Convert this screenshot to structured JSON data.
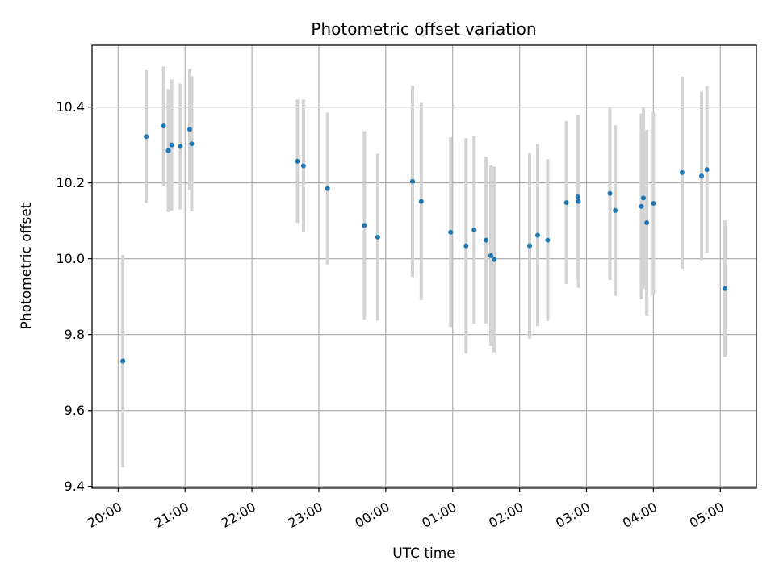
{
  "chart_data": {
    "type": "scatter",
    "title": "Photometric offset variation",
    "xlabel": "UTC time",
    "ylabel": "Photometric offset",
    "x_unit": "hours",
    "x_ticks": [
      {
        "value": 20,
        "label": "20:00"
      },
      {
        "value": 21,
        "label": "21:00"
      },
      {
        "value": 22,
        "label": "22:00"
      },
      {
        "value": 23,
        "label": "23:00"
      },
      {
        "value": 24,
        "label": "00:00"
      },
      {
        "value": 25,
        "label": "01:00"
      },
      {
        "value": 26,
        "label": "02:00"
      },
      {
        "value": 27,
        "label": "03:00"
      },
      {
        "value": 28,
        "label": "04:00"
      },
      {
        "value": 29,
        "label": "05:00"
      }
    ],
    "y_ticks": [
      {
        "value": 9.4,
        "label": "9.4"
      },
      {
        "value": 9.6,
        "label": "9.6"
      },
      {
        "value": 9.8,
        "label": "9.8"
      },
      {
        "value": 10.0,
        "label": "10.0"
      },
      {
        "value": 10.2,
        "label": "10.2"
      },
      {
        "value": 10.4,
        "label": "10.4"
      }
    ],
    "xlim": [
      19.61,
      29.54
    ],
    "ylim": [
      9.395,
      10.563
    ],
    "grid": true,
    "colors": {
      "marker": "#1f77b4",
      "errorbar": "#d3d3d3",
      "grid": "#b0b0b0"
    },
    "points": [
      {
        "x": 20.07,
        "y": 9.73,
        "err": 0.28
      },
      {
        "x": 20.42,
        "y": 10.322,
        "err": 0.175
      },
      {
        "x": 20.68,
        "y": 10.35,
        "err": 0.157
      },
      {
        "x": 20.75,
        "y": 10.285,
        "err": 0.162
      },
      {
        "x": 20.8,
        "y": 10.3,
        "err": 0.173
      },
      {
        "x": 20.93,
        "y": 10.296,
        "err": 0.166
      },
      {
        "x": 21.07,
        "y": 10.341,
        "err": 0.16
      },
      {
        "x": 21.1,
        "y": 10.303,
        "err": 0.178
      },
      {
        "x": 22.68,
        "y": 10.257,
        "err": 0.163
      },
      {
        "x": 22.77,
        "y": 10.245,
        "err": 0.175
      },
      {
        "x": 23.13,
        "y": 10.185,
        "err": 0.2
      },
      {
        "x": 23.68,
        "y": 10.088,
        "err": 0.248
      },
      {
        "x": 23.88,
        "y": 10.057,
        "err": 0.22
      },
      {
        "x": 24.4,
        "y": 10.204,
        "err": 0.252
      },
      {
        "x": 24.53,
        "y": 10.151,
        "err": 0.26
      },
      {
        "x": 24.97,
        "y": 10.07,
        "err": 0.25
      },
      {
        "x": 25.2,
        "y": 10.034,
        "err": 0.284
      },
      {
        "x": 25.32,
        "y": 10.076,
        "err": 0.247
      },
      {
        "x": 25.5,
        "y": 10.049,
        "err": 0.22
      },
      {
        "x": 25.57,
        "y": 10.008,
        "err": 0.238
      },
      {
        "x": 25.62,
        "y": 9.998,
        "err": 0.245
      },
      {
        "x": 26.15,
        "y": 10.034,
        "err": 0.245
      },
      {
        "x": 26.27,
        "y": 10.062,
        "err": 0.24
      },
      {
        "x": 26.42,
        "y": 10.049,
        "err": 0.213
      },
      {
        "x": 26.7,
        "y": 10.148,
        "err": 0.215
      },
      {
        "x": 26.87,
        "y": 10.163,
        "err": 0.215
      },
      {
        "x": 26.88,
        "y": 10.151,
        "err": 0.228
      },
      {
        "x": 27.35,
        "y": 10.172,
        "err": 0.228
      },
      {
        "x": 27.43,
        "y": 10.127,
        "err": 0.225
      },
      {
        "x": 27.82,
        "y": 10.138,
        "err": 0.245
      },
      {
        "x": 27.85,
        "y": 10.16,
        "err": 0.24
      },
      {
        "x": 27.9,
        "y": 10.095,
        "err": 0.245
      },
      {
        "x": 28.0,
        "y": 10.146,
        "err": 0.242
      },
      {
        "x": 28.43,
        "y": 10.227,
        "err": 0.253
      },
      {
        "x": 28.72,
        "y": 10.218,
        "err": 0.222
      },
      {
        "x": 28.8,
        "y": 10.235,
        "err": 0.22
      },
      {
        "x": 29.07,
        "y": 9.921,
        "err": 0.18
      }
    ]
  }
}
